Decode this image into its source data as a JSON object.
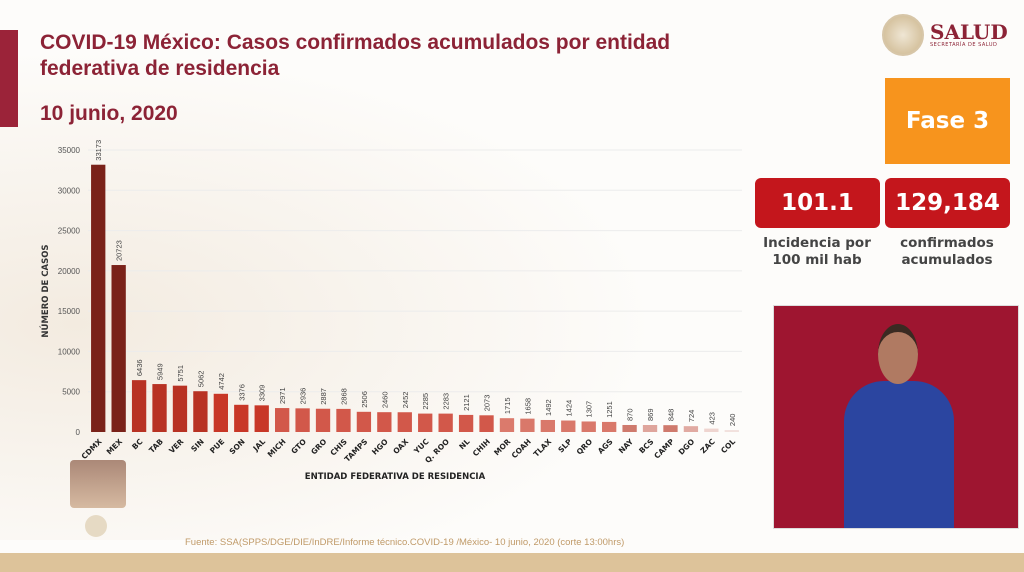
{
  "header": {
    "title": "COVID-19 México: Casos confirmados acumulados por entidad federativa de residencia",
    "date": "10 junio, 2020"
  },
  "logo": {
    "name": "SALUD",
    "subtitle": "SECRETARÍA DE SALUD"
  },
  "phase": {
    "label": "Fase 3",
    "color": "#f7941d"
  },
  "kpis": [
    {
      "value": "101.1",
      "label": "Incidencia por 100 mil hab"
    },
    {
      "value": "129,184",
      "label": "confirmados acumulados"
    }
  ],
  "interpreter": {
    "description": "sign language interpreter video"
  },
  "source": "Fuente: SSA(SPPS/DGE/DIE/InDRE/Informe técnico.COVID-19 /México- 10 junio, 2020 (corte 13:00hrs)",
  "chart_data": {
    "type": "bar",
    "title": "COVID-19 México: Casos confirmados acumulados por entidad federativa de residencia",
    "xlabel": "ENTIDAD FEDERATIVA DE RESIDENCIA",
    "ylabel": "NÚMERO DE CASOS",
    "ylim": [
      0,
      35000
    ],
    "yticks": [
      0,
      5000,
      10000,
      15000,
      20000,
      25000,
      30000,
      35000
    ],
    "grid": true,
    "categories": [
      "CDMX",
      "MEX",
      "BC",
      "TAB",
      "VER",
      "SIN",
      "PUE",
      "SON",
      "JAL",
      "MICH",
      "GTO",
      "GRO",
      "CHIS",
      "TAMPS",
      "HGO",
      "OAX",
      "YUC",
      "Q. ROO",
      "NL",
      "CHIH",
      "MOR",
      "COAH",
      "TLAX",
      "SLP",
      "QRO",
      "AGS",
      "NAY",
      "BCS",
      "CAMP",
      "DGO",
      "ZAC",
      "COL"
    ],
    "values": [
      33173,
      20723,
      6436,
      5949,
      5751,
      5062,
      4742,
      3376,
      3309,
      2971,
      2936,
      2887,
      2868,
      2506,
      2460,
      2452,
      2285,
      2283,
      2121,
      2073,
      1715,
      1658,
      1492,
      1424,
      1307,
      1251,
      870,
      869,
      848,
      724,
      423,
      240
    ],
    "colors": [
      "#7a2219",
      "#7a2219",
      "#b83223",
      "#b83223",
      "#b83223",
      "#b83223",
      "#c83727",
      "#c83727",
      "#c83727",
      "#d2584a",
      "#d2584a",
      "#d2584a",
      "#d2584a",
      "#d2584a",
      "#d2584a",
      "#d2584a",
      "#d2584a",
      "#d2584a",
      "#d2584a",
      "#d2584a",
      "#db7a6c",
      "#d9786a",
      "#d9786a",
      "#d9786a",
      "#d9786a",
      "#d9786a",
      "#cf7a6d",
      "#dfa59c",
      "#cf7a6d",
      "#e1aaa2",
      "#efd5d0",
      "#f2e1dd"
    ]
  }
}
